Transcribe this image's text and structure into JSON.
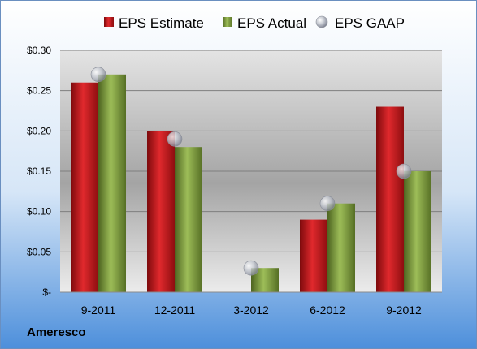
{
  "company": "Ameresco",
  "chart_data": {
    "type": "bar",
    "categories": [
      "9-2011",
      "12-2011",
      "3-2012",
      "6-2012",
      "9-2012"
    ],
    "series": [
      {
        "name": "EPS Estimate",
        "type": "bar",
        "color": "#c0181c",
        "values": [
          0.26,
          0.2,
          null,
          0.09,
          0.23
        ]
      },
      {
        "name": "EPS Actual",
        "type": "bar",
        "color": "#7e9d3a",
        "values": [
          0.27,
          0.18,
          0.03,
          0.11,
          0.15
        ]
      },
      {
        "name": "EPS GAAP",
        "type": "scatter",
        "color": "#b8bcc6",
        "values": [
          0.27,
          0.19,
          0.03,
          0.11,
          0.15
        ]
      }
    ],
    "ylim": [
      0,
      0.3
    ],
    "yticks": [
      0,
      0.05,
      0.1,
      0.15,
      0.2,
      0.25,
      0.3
    ],
    "ytick_labels": [
      "$-",
      "$0.05",
      "$0.10",
      "$0.15",
      "$0.20",
      "$0.25",
      "$0.30"
    ],
    "grid": true,
    "legend_position": "top"
  }
}
